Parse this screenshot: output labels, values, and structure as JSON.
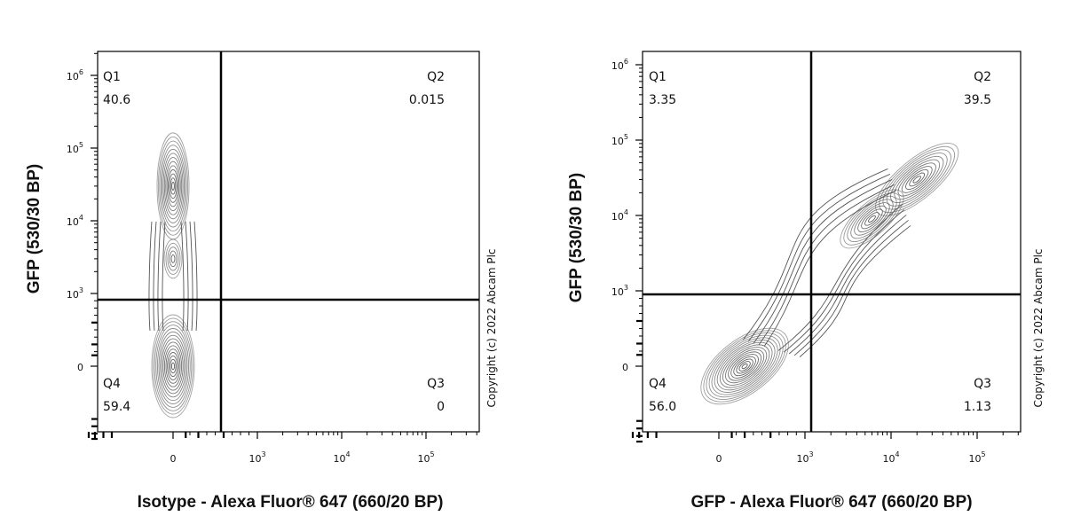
{
  "chart_data": [
    {
      "type": "contour",
      "xlabel": "Isotype - Alexa Fluor® 647 (660/20 BP)",
      "ylabel": "GFP (530/30 BP)",
      "copyright": "Copyright (c) 2022 Abcam Plc",
      "x_ticks": [
        {
          "base": "0",
          "exp": ""
        },
        {
          "base": "10",
          "exp": "3"
        },
        {
          "base": "10",
          "exp": "4"
        },
        {
          "base": "10",
          "exp": "5"
        }
      ],
      "y_ticks": [
        {
          "base": "0",
          "exp": ""
        },
        {
          "base": "10",
          "exp": "3"
        },
        {
          "base": "10",
          "exp": "4"
        },
        {
          "base": "10",
          "exp": "5"
        },
        {
          "base": "10",
          "exp": "6"
        }
      ],
      "quadrants": [
        {
          "name": "Q1",
          "value": "40.6"
        },
        {
          "name": "Q2",
          "value": "0.015"
        },
        {
          "name": "Q3",
          "value": "0"
        },
        {
          "name": "Q4",
          "value": "59.4"
        }
      ],
      "gate_x": 600,
      "gate_y": 800,
      "populations": [
        {
          "x": 0,
          "y": 30000
        },
        {
          "x": 0,
          "y": 3000
        },
        {
          "x": 0,
          "y": 0
        }
      ]
    },
    {
      "type": "contour",
      "xlabel": "GFP - Alexa Fluor® 647 (660/20 BP)",
      "ylabel": "GFP (530/30 BP)",
      "copyright": "Copyright (c) 2022 Abcam Plc",
      "x_ticks": [
        {
          "base": "0",
          "exp": ""
        },
        {
          "base": "10",
          "exp": "3"
        },
        {
          "base": "10",
          "exp": "4"
        },
        {
          "base": "10",
          "exp": "5"
        }
      ],
      "y_ticks": [
        {
          "base": "0",
          "exp": ""
        },
        {
          "base": "10",
          "exp": "3"
        },
        {
          "base": "10",
          "exp": "4"
        },
        {
          "base": "10",
          "exp": "5"
        },
        {
          "base": "10",
          "exp": "6"
        }
      ],
      "quadrants": [
        {
          "name": "Q1",
          "value": "3.35"
        },
        {
          "name": "Q2",
          "value": "39.5"
        },
        {
          "name": "Q3",
          "value": "1.13"
        },
        {
          "name": "Q4",
          "value": "56.0"
        }
      ],
      "gate_x": 1200,
      "gate_y": 1000,
      "populations": [
        {
          "x": 300,
          "y": 0
        },
        {
          "x": 6000,
          "y": 9000
        },
        {
          "x": 20000,
          "y": 30000
        }
      ]
    }
  ]
}
